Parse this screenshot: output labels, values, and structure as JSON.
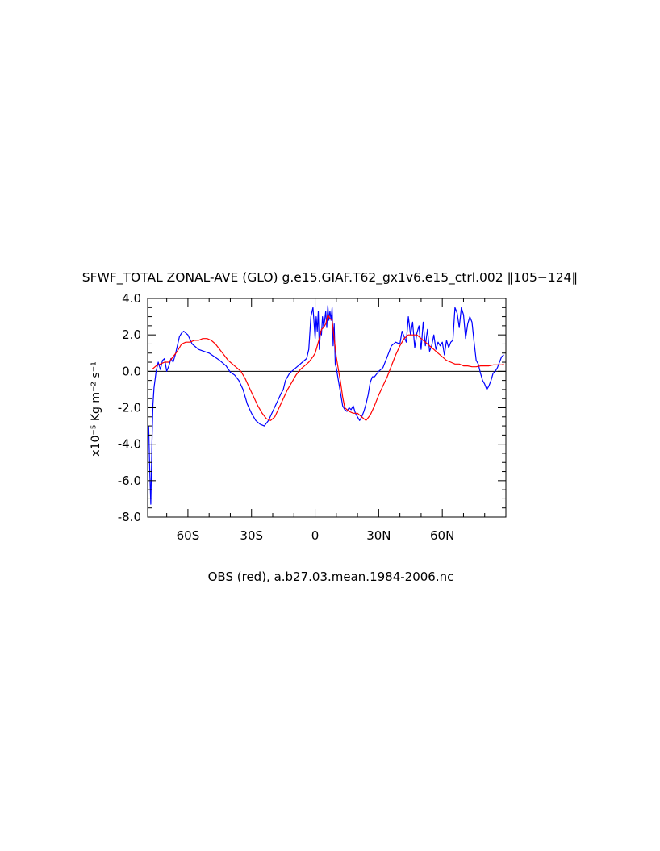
{
  "chart_data": {
    "type": "line",
    "title": "SFWF_TOTAL ZONAL-AVE (GLO) g.e15.GIAF.T62_gx1v6.e15_ctrl.002 ‖105−124‖",
    "ylabel": "x10⁻⁵ Kg m⁻² s⁻¹",
    "xlabel": "OBS (red), a.b27.03.mean.1984-2006.nc",
    "xlim": [
      -79,
      90
    ],
    "ylim": [
      -8.0,
      4.0
    ],
    "grid": false,
    "legend": "none",
    "reference_line": 0.0,
    "x_ticks": [
      {
        "value": -60,
        "label": "60S"
      },
      {
        "value": -30,
        "label": "30S"
      },
      {
        "value": 0,
        "label": "0"
      },
      {
        "value": 30,
        "label": "30N"
      },
      {
        "value": 60,
        "label": "60N"
      }
    ],
    "y_ticks": [
      {
        "value": 4.0,
        "label": "4.0"
      },
      {
        "value": 2.0,
        "label": "2.0"
      },
      {
        "value": 0.0,
        "label": "0.0"
      },
      {
        "value": -2.0,
        "label": "-2.0"
      },
      {
        "value": -4.0,
        "label": "-4.0"
      },
      {
        "value": -6.0,
        "label": "-6.0"
      },
      {
        "value": -8.0,
        "label": "-8.0"
      }
    ],
    "series": [
      {
        "color": "#0000ff",
        "x": [
          -78.5,
          -78,
          -77.5,
          -77,
          -76.5,
          -76,
          -75,
          -74,
          -73,
          -72,
          -71,
          -70,
          -69,
          -68,
          -67,
          -66,
          -65,
          -64,
          -63,
          -62,
          -61,
          -60,
          -58,
          -55,
          -50,
          -45,
          -42,
          -40,
          -38,
          -36,
          -34,
          -32,
          -30,
          -28,
          -26,
          -24,
          -22,
          -20,
          -18,
          -16,
          -15,
          -14,
          -13,
          -12,
          -10,
          -8,
          -6,
          -4,
          -3,
          -2,
          -1,
          0,
          0.5,
          1,
          1.5,
          2,
          2.5,
          3,
          3.5,
          4,
          4.5,
          5,
          5.5,
          6,
          6.5,
          7,
          7.5,
          8,
          8.5,
          9,
          9.5,
          10,
          11,
          12,
          13,
          14,
          15,
          16,
          17,
          18,
          19,
          20,
          21,
          22,
          23,
          24,
          25,
          26,
          27,
          28,
          30,
          32,
          34,
          36,
          38,
          40,
          41,
          42,
          43,
          44,
          45,
          46,
          47,
          48,
          49,
          50,
          51,
          52,
          53,
          54,
          55,
          56,
          57,
          58,
          59,
          60,
          61,
          62,
          63,
          64,
          65,
          66,
          67,
          68,
          69,
          70,
          71,
          72,
          73,
          74,
          75,
          76,
          77,
          78,
          79,
          80,
          81,
          82,
          83,
          84,
          85,
          86,
          87,
          88,
          89
        ],
        "y": [
          -3.0,
          -5.5,
          -7.3,
          -4.0,
          -1.8,
          -0.9,
          0.0,
          0.5,
          0.1,
          0.6,
          0.7,
          0.0,
          0.3,
          0.7,
          0.5,
          0.9,
          1.4,
          1.9,
          2.1,
          2.2,
          2.1,
          2.0,
          1.5,
          1.2,
          1.0,
          0.6,
          0.3,
          -0.05,
          -0.2,
          -0.5,
          -1.0,
          -1.8,
          -2.3,
          -2.7,
          -2.9,
          -3.0,
          -2.7,
          -2.2,
          -1.7,
          -1.2,
          -1.0,
          -0.5,
          -0.3,
          -0.1,
          0.1,
          0.3,
          0.5,
          0.7,
          1.2,
          3.0,
          3.5,
          1.8,
          3.0,
          2.2,
          3.3,
          1.2,
          2.2,
          2.0,
          3.0,
          2.4,
          2.8,
          3.3,
          2.4,
          3.6,
          2.8,
          3.3,
          2.8,
          3.5,
          1.4,
          2.6,
          0.4,
          0.2,
          -0.5,
          -1.2,
          -1.9,
          -2.1,
          -2.2,
          -2.0,
          -2.1,
          -1.9,
          -2.3,
          -2.5,
          -2.7,
          -2.5,
          -2.2,
          -1.8,
          -1.3,
          -0.6,
          -0.3,
          -0.3,
          0.0,
          0.2,
          0.8,
          1.4,
          1.6,
          1.5,
          2.2,
          1.9,
          1.6,
          3.0,
          2.0,
          2.7,
          1.3,
          2.1,
          2.5,
          1.2,
          2.7,
          1.4,
          2.3,
          1.1,
          1.4,
          2.0,
          1.2,
          1.6,
          1.4,
          1.6,
          0.9,
          1.7,
          1.3,
          1.6,
          1.7,
          3.5,
          3.2,
          2.4,
          3.5,
          3.1,
          1.8,
          2.6,
          3.0,
          2.7,
          1.6,
          0.6,
          0.4,
          -0.1,
          -0.5,
          -0.7,
          -1.0,
          -0.8,
          -0.5,
          -0.1,
          0.0,
          0.2,
          0.5,
          0.8,
          0.9
        ]
      },
      {
        "color": "#ff0000",
        "x": [
          -77,
          -75,
          -73,
          -71,
          -69,
          -67,
          -65,
          -63,
          -61,
          -59,
          -57,
          -55,
          -53,
          -51,
          -49,
          -47,
          -45,
          -43,
          -41,
          -39,
          -37,
          -35,
          -33,
          -31,
          -29,
          -27,
          -25,
          -23,
          -21,
          -19,
          -17,
          -15,
          -13,
          -11,
          -9,
          -7,
          -5,
          -3,
          -1,
          0,
          1,
          2,
          3,
          4,
          5,
          6,
          7,
          8,
          9,
          10,
          11,
          12,
          13,
          14,
          16,
          18,
          20,
          22,
          24,
          26,
          28,
          30,
          32,
          34,
          36,
          38,
          40,
          42,
          44,
          46,
          48,
          50,
          52,
          54,
          56,
          58,
          60,
          62,
          64,
          66,
          68,
          70,
          72,
          74,
          76,
          78,
          80,
          82,
          84,
          86,
          88,
          89
        ],
        "y": [
          0.1,
          0.3,
          0.4,
          0.5,
          0.5,
          0.8,
          1.1,
          1.5,
          1.6,
          1.6,
          1.7,
          1.7,
          1.8,
          1.8,
          1.7,
          1.5,
          1.2,
          0.9,
          0.6,
          0.4,
          0.2,
          0.0,
          -0.4,
          -0.9,
          -1.4,
          -1.9,
          -2.3,
          -2.6,
          -2.7,
          -2.5,
          -2.0,
          -1.5,
          -1.0,
          -0.6,
          -0.2,
          0.1,
          0.3,
          0.5,
          0.8,
          1.0,
          1.4,
          1.8,
          2.3,
          2.4,
          2.6,
          3.1,
          2.9,
          2.8,
          1.8,
          0.8,
          0.1,
          -0.6,
          -1.4,
          -2.0,
          -2.2,
          -2.3,
          -2.3,
          -2.5,
          -2.7,
          -2.4,
          -1.9,
          -1.3,
          -0.8,
          -0.3,
          0.3,
          0.9,
          1.4,
          1.8,
          2.0,
          2.0,
          2.0,
          1.8,
          1.6,
          1.4,
          1.2,
          1.0,
          0.8,
          0.6,
          0.5,
          0.4,
          0.4,
          0.3,
          0.3,
          0.25,
          0.25,
          0.3,
          0.3,
          0.3,
          0.35,
          0.35,
          0.35,
          0.4
        ]
      }
    ]
  }
}
